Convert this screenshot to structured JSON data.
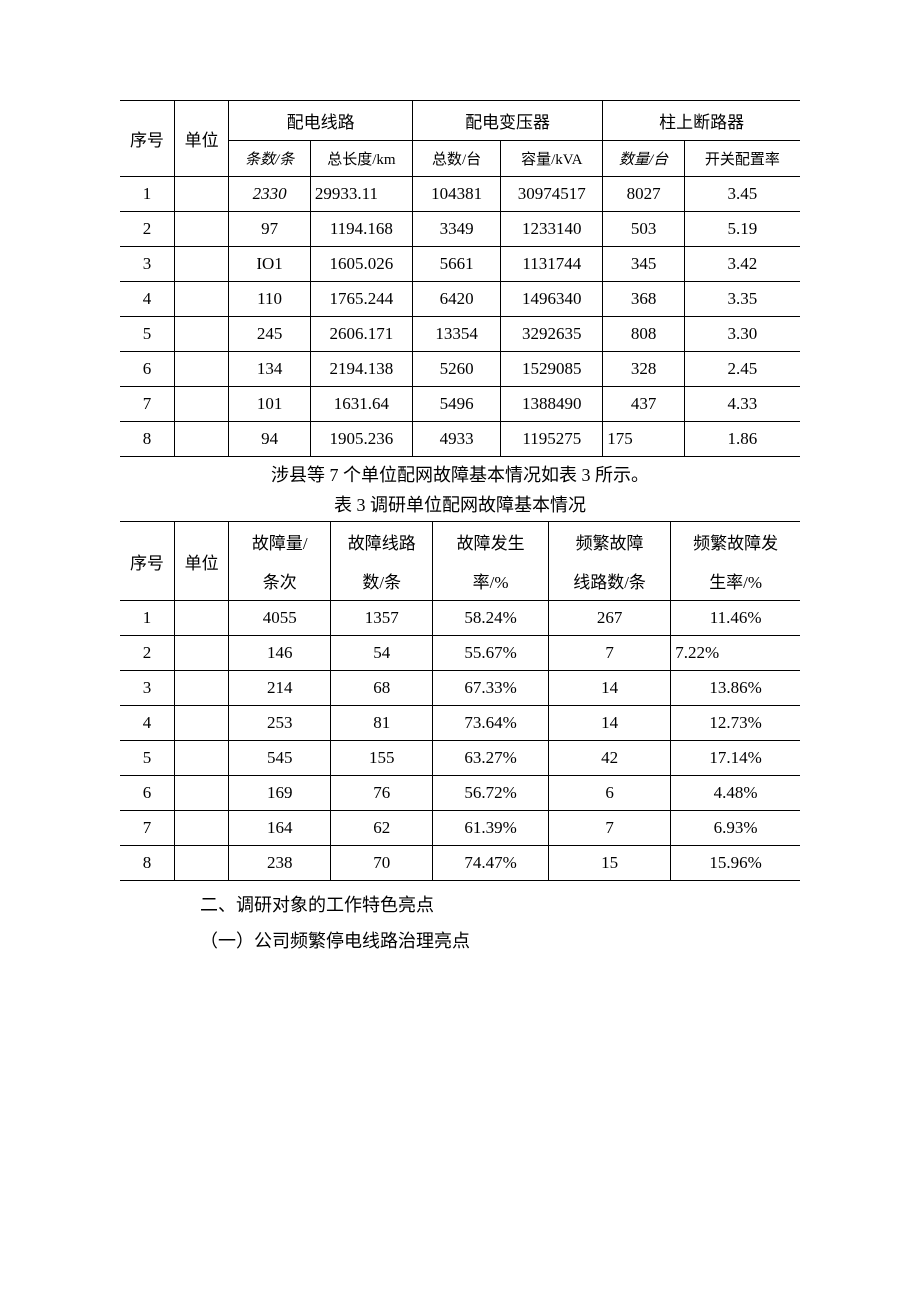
{
  "table1": {
    "headers": {
      "seq": "序号",
      "unit": "单位",
      "group1": "配电线路",
      "group2": "配电变压器",
      "group3": "柱上断路器",
      "sub1": "条数/条",
      "sub2": "总长度/km",
      "sub3": "总数/台",
      "sub4": "容量/kVA",
      "sub5": "数量/台",
      "sub6": "开关配置率"
    },
    "rows": [
      {
        "seq": "1",
        "unit": "",
        "c1": "2330",
        "c2": "29933.11",
        "c3": "104381",
        "c4": "30974517",
        "c5": "8027",
        "c6": "3.45"
      },
      {
        "seq": "2",
        "unit": "",
        "c1": "97",
        "c2": "1194.168",
        "c3": "3349",
        "c4": "1233140",
        "c5": "503",
        "c6": "5.19"
      },
      {
        "seq": "3",
        "unit": "",
        "c1": "IO1",
        "c2": "1605.026",
        "c3": "5661",
        "c4": "1131744",
        "c5": "345",
        "c6": "3.42"
      },
      {
        "seq": "4",
        "unit": "",
        "c1": "110",
        "c2": "1765.244",
        "c3": "6420",
        "c4": "1496340",
        "c5": "368",
        "c6": "3.35"
      },
      {
        "seq": "5",
        "unit": "",
        "c1": "245",
        "c2": "2606.171",
        "c3": "13354",
        "c4": "3292635",
        "c5": "808",
        "c6": "3.30"
      },
      {
        "seq": "6",
        "unit": "",
        "c1": "134",
        "c2": "2194.138",
        "c3": "5260",
        "c4": "1529085",
        "c5": "328",
        "c6": "2.45"
      },
      {
        "seq": "7",
        "unit": "",
        "c1": "101",
        "c2": "1631.64",
        "c3": "5496",
        "c4": "1388490",
        "c5": "437",
        "c6": "4.33"
      },
      {
        "seq": "8",
        "unit": "",
        "c1": "94",
        "c2": "1905.236",
        "c3": "4933",
        "c4": "1195275",
        "c5": "175",
        "c6": "1.86"
      }
    ]
  },
  "caption1": "涉县等 7 个单位配网故障基本情况如表 3 所示。",
  "caption2": "表 3 调研单位配网故障基本情况",
  "table2": {
    "headers": {
      "seq": "序号",
      "unit": "单位",
      "c1a": "故障量/",
      "c1b": "条次",
      "c2a": "故障线路",
      "c2b": "数/条",
      "c3a": "故障发生",
      "c3b": "率/%",
      "c4a": "频繁故障",
      "c4b": "线路数/条",
      "c5a": "频繁故障发",
      "c5b": "生率/%"
    },
    "rows": [
      {
        "seq": "1",
        "unit": "",
        "c1": "4055",
        "c2": "1357",
        "c3": "58.24%",
        "c4": "267",
        "c5": "11.46%"
      },
      {
        "seq": "2",
        "unit": "",
        "c1": "146",
        "c2": "54",
        "c3": "55.67%",
        "c4": "7",
        "c5": "7.22%"
      },
      {
        "seq": "3",
        "unit": "",
        "c1": "214",
        "c2": "68",
        "c3": "67.33%",
        "c4": "14",
        "c5": "13.86%"
      },
      {
        "seq": "4",
        "unit": "",
        "c1": "253",
        "c2": "81",
        "c3": "73.64%",
        "c4": "14",
        "c5": "12.73%"
      },
      {
        "seq": "5",
        "unit": "",
        "c1": "545",
        "c2": "155",
        "c3": "63.27%",
        "c4": "42",
        "c5": "17.14%"
      },
      {
        "seq": "6",
        "unit": "",
        "c1": "169",
        "c2": "76",
        "c3": "56.72%",
        "c4": "6",
        "c5": "4.48%"
      },
      {
        "seq": "7",
        "unit": "",
        "c1": "164",
        "c2": "62",
        "c3": "61.39%",
        "c4": "7",
        "c5": "6.93%"
      },
      {
        "seq": "8",
        "unit": "",
        "c1": "238",
        "c2": "70",
        "c3": "74.47%",
        "c4": "15",
        "c5": "15.96%"
      }
    ]
  },
  "body1": "二、调研对象的工作特色亮点",
  "body2": "（一）公司频繁停电线路治理亮点"
}
